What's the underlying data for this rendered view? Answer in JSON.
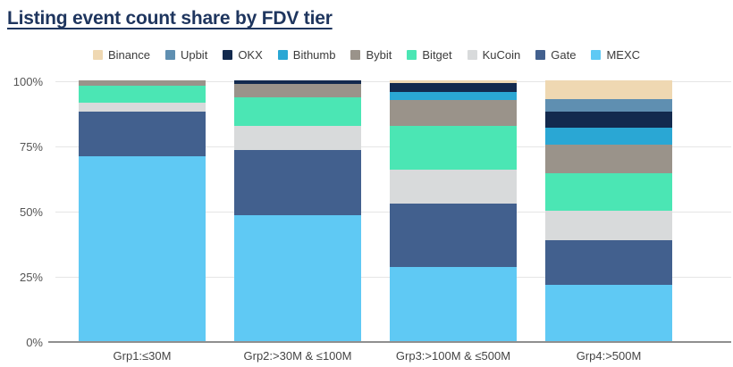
{
  "chart_data": {
    "type": "bar",
    "variant": "stacked-100-percent",
    "title": "Listing event count share by FDV tier",
    "title_color": "#1e355e",
    "categories": [
      "Grp1:≤30M",
      "Grp2:>30M & ≤100M",
      "Grp3:>100M & ≤500M",
      "Grp4:>500M"
    ],
    "series": [
      {
        "name": "Binance",
        "color": "#efd8b2",
        "values": [
          0,
          0,
          1,
          7
        ]
      },
      {
        "name": "Upbit",
        "color": "#5f8fb1",
        "values": [
          0,
          0,
          0,
          5
        ]
      },
      {
        "name": "OKX",
        "color": "#132a4e",
        "values": [
          0,
          1.5,
          3.5,
          6
        ]
      },
      {
        "name": "Bithumb",
        "color": "#2aa7d4",
        "values": [
          0,
          0,
          3,
          6.5
        ]
      },
      {
        "name": "Bybit",
        "color": "#9a938a",
        "values": [
          2,
          5,
          10,
          11
        ]
      },
      {
        "name": "Bitget",
        "color": "#4be6b4",
        "values": [
          6.5,
          11,
          16.5,
          14
        ]
      },
      {
        "name": "KuCoin",
        "color": "#d8dadb",
        "values": [
          3.5,
          9,
          13,
          11.5
        ]
      },
      {
        "name": "Gate",
        "color": "#42608e",
        "values": [
          17,
          25,
          24,
          17
        ]
      },
      {
        "name": "MEXC",
        "color": "#5fc9f4",
        "values": [
          71,
          48.5,
          29,
          22
        ]
      }
    ],
    "stack_order_bottom_to_top": [
      "MEXC",
      "Gate",
      "KuCoin",
      "Bitget",
      "Bybit",
      "Bithumb",
      "OKX",
      "Upbit",
      "Binance"
    ],
    "y_ticks": [
      "100%",
      "75%",
      "50%",
      "25%",
      "0%"
    ],
    "ylim": [
      0,
      100
    ],
    "xlabel": "",
    "ylabel": "",
    "grid": true,
    "legend_position": "top"
  }
}
